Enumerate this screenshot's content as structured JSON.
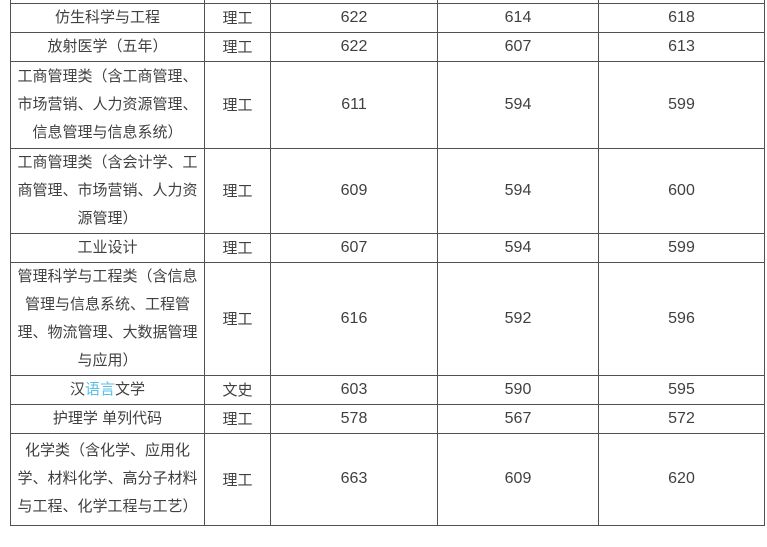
{
  "page": {
    "background": "#ffffff"
  },
  "colors": {
    "text": "#3f3f3f",
    "score_text": "#4d4d4d",
    "border": "#515151",
    "keyword_highlight": "#58bfe8"
  },
  "table": {
    "rows": [
      {
        "major_lines": [
          [
            {
              "text": "仿生科学与工程"
            }
          ]
        ],
        "category": "理工",
        "scores": [
          "622",
          "614",
          "618"
        ]
      },
      {
        "major_lines": [
          [
            {
              "text": "放射医学（五年）"
            }
          ]
        ],
        "category": "理工",
        "scores": [
          "622",
          "607",
          "613"
        ]
      },
      {
        "major_lines": [
          [
            {
              "text": "工商管理类（含工商管理、"
            }
          ],
          [
            {
              "text": "市场营销、人力资源管理、"
            }
          ],
          [
            {
              "text": "信息管理与信息系统）"
            }
          ]
        ],
        "category": "理工",
        "scores": [
          "611",
          "594",
          "599"
        ]
      },
      {
        "major_lines": [
          [
            {
              "text": "工商管理类（含会计学、工"
            }
          ],
          [
            {
              "text": "商管理、市场营销、人力资"
            }
          ],
          [
            {
              "text": "源管理）"
            }
          ]
        ],
        "category": "理工",
        "scores": [
          "609",
          "594",
          "600"
        ]
      },
      {
        "major_lines": [
          [
            {
              "text": "工业设计"
            }
          ]
        ],
        "category": "理工",
        "scores": [
          "607",
          "594",
          "599"
        ]
      },
      {
        "major_lines": [
          [
            {
              "text": "管理科学与工程类（含信息"
            }
          ],
          [
            {
              "text": "管理与信息系统、工程管"
            }
          ],
          [
            {
              "text": "理、物流管理、大数据管理"
            }
          ],
          [
            {
              "text": "与应用）"
            }
          ]
        ],
        "category": "理工",
        "scores": [
          "616",
          "592",
          "596"
        ]
      },
      {
        "major_lines": [
          [
            {
              "text": "汉"
            },
            {
              "text": "语言",
              "highlight": true
            },
            {
              "text": "文学"
            }
          ]
        ],
        "category": "文史",
        "scores": [
          "603",
          "590",
          "595"
        ]
      },
      {
        "major_lines": [
          [
            {
              "text": "护理学 单列代码"
            }
          ]
        ],
        "category": "理工",
        "scores": [
          "578",
          "567",
          "572"
        ]
      },
      {
        "major_lines": [
          [
            {
              "text": "化学类（含化学、应用化"
            }
          ],
          [
            {
              "text": "学、材料化学、高分子材料"
            }
          ],
          [
            {
              "text": "与工程、化学工程与工艺）"
            }
          ]
        ],
        "category": "理工",
        "scores": [
          "663",
          "609",
          "620"
        ]
      }
    ]
  },
  "chart_data": {
    "type": "table",
    "rows": [
      [
        "仿生科学与工程",
        "理工",
        "622",
        "614",
        "618"
      ],
      [
        "放射医学（五年）",
        "理工",
        "622",
        "607",
        "613"
      ],
      [
        "工商管理类（含工商管理、市场营销、人力资源管理、信息管理与信息系统）",
        "理工",
        "611",
        "594",
        "599"
      ],
      [
        "工商管理类（含会计学、工商管理、市场营销、人力资源管理）",
        "理工",
        "609",
        "594",
        "600"
      ],
      [
        "工业设计",
        "理工",
        "607",
        "594",
        "599"
      ],
      [
        "管理科学与工程类（含信息管理与信息系统、工程管理、物流管理、大数据管理与应用）",
        "理工",
        "616",
        "592",
        "596"
      ],
      [
        "汉语言文学",
        "文史",
        "603",
        "590",
        "595"
      ],
      [
        "护理学 单列代码",
        "理工",
        "578",
        "567",
        "572"
      ],
      [
        "化学类（含化学、应用化学、材料化学、高分子材料与工程、化学工程与工艺）",
        "理工",
        "663",
        "609",
        "620"
      ]
    ]
  }
}
